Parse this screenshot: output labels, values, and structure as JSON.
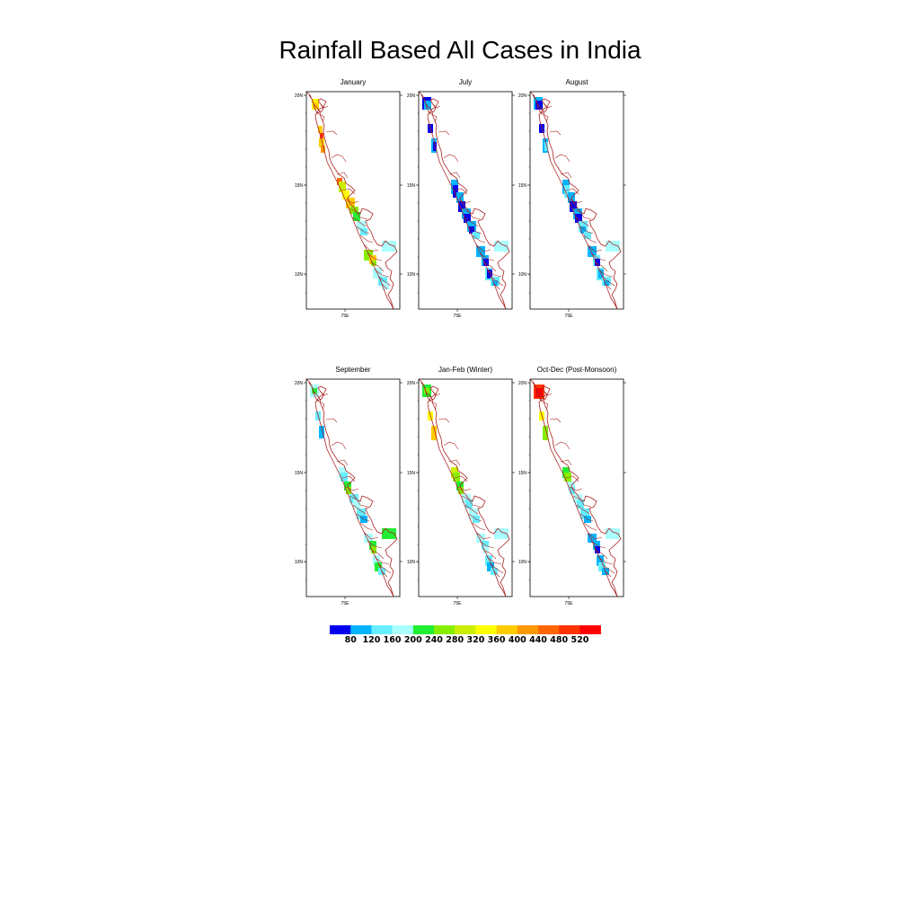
{
  "title": "Rainfall Based All Cases in India",
  "panels": [
    {
      "title": "January",
      "lat_labels": [
        "20N",
        "15N",
        "10N"
      ],
      "lon_labels": [
        "75E"
      ]
    },
    {
      "title": "July",
      "lat_labels": [
        "20N",
        "15N",
        "10N"
      ],
      "lon_labels": [
        "75E"
      ]
    },
    {
      "title": "August",
      "lat_labels": [
        "20N",
        "15N",
        "10N"
      ],
      "lon_labels": [
        "75E"
      ]
    },
    {
      "title": "September",
      "lat_labels": [
        "20N",
        "15N",
        "10N"
      ],
      "lon_labels": [
        "75E"
      ]
    },
    {
      "title": "Jan-Feb (Winter)",
      "lat_labels": [
        "20N",
        "15N",
        "10N"
      ],
      "lon_labels": [
        "75E"
      ]
    },
    {
      "title": "Oct-Dec (Post-Monsoon)",
      "lat_labels": [
        "20N",
        "15N",
        "10N"
      ],
      "lon_labels": [
        "75E"
      ]
    }
  ],
  "colorbar": {
    "colors": [
      "#0000ee",
      "#00b4ff",
      "#66eeff",
      "#aaffff",
      "#22ee33",
      "#88ee00",
      "#ccee00",
      "#ffff00",
      "#ffcc00",
      "#ff9900",
      "#ff6600",
      "#ff3300",
      "#ff0000"
    ],
    "labels": [
      "80",
      "120",
      "160",
      "200",
      "240",
      "280",
      "320",
      "360",
      "400",
      "440",
      "480",
      "520"
    ]
  },
  "palette_index": {
    "dark_blue": "#0000ee",
    "light_blue": "#00b4ff",
    "cyan": "#66eeff",
    "pale_cyan": "#aaffff",
    "green": "#22ee33",
    "yellow_green": "#88ee00",
    "yellow": "#ffff00",
    "orange": "#ff9900",
    "red": "#ff0000"
  }
}
